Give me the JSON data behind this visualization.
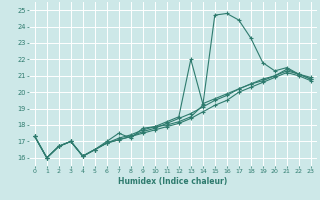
{
  "xlabel": "Humidex (Indice chaleur)",
  "bg_color": "#cde8e8",
  "grid_color": "#ffffff",
  "line_color": "#2e7b6e",
  "xlim": [
    -0.5,
    23.5
  ],
  "ylim": [
    15.5,
    25.5
  ],
  "xticks": [
    0,
    1,
    2,
    3,
    4,
    5,
    6,
    7,
    8,
    9,
    10,
    11,
    12,
    13,
    14,
    15,
    16,
    17,
    18,
    19,
    20,
    21,
    22,
    23
  ],
  "yticks": [
    16,
    17,
    18,
    19,
    20,
    21,
    22,
    23,
    24,
    25
  ],
  "lines": [
    {
      "x": [
        0,
        1,
        2,
        3,
        4,
        5,
        6,
        7,
        8,
        9,
        10,
        11,
        12,
        13,
        14,
        15,
        16,
        17,
        18,
        19,
        20,
        21,
        22,
        23
      ],
      "y": [
        17.3,
        16.0,
        16.7,
        17.0,
        16.1,
        16.5,
        17.0,
        17.5,
        17.2,
        17.8,
        17.9,
        18.0,
        18.2,
        18.5,
        19.2,
        24.7,
        24.8,
        24.4,
        23.3,
        21.8,
        21.3,
        21.5,
        21.1,
        20.8
      ]
    },
    {
      "x": [
        0,
        1,
        2,
        3,
        4,
        5,
        6,
        7,
        8,
        9,
        10,
        11,
        12,
        13,
        14,
        15,
        16,
        17,
        18,
        19,
        20,
        21,
        22,
        23
      ],
      "y": [
        17.3,
        16.0,
        16.7,
        17.0,
        16.1,
        16.5,
        16.9,
        17.1,
        17.3,
        17.5,
        17.7,
        17.9,
        18.1,
        18.4,
        18.8,
        19.2,
        19.5,
        20.0,
        20.3,
        20.6,
        20.9,
        21.2,
        21.0,
        20.7
      ]
    },
    {
      "x": [
        0,
        1,
        2,
        3,
        4,
        5,
        6,
        7,
        8,
        9,
        10,
        11,
        12,
        13,
        14,
        15,
        16,
        17,
        18,
        19,
        20,
        21,
        22,
        23
      ],
      "y": [
        17.3,
        16.0,
        16.7,
        17.0,
        16.1,
        16.5,
        16.9,
        17.1,
        17.3,
        17.6,
        17.8,
        18.1,
        18.4,
        18.7,
        19.1,
        19.5,
        19.8,
        20.2,
        20.5,
        20.7,
        21.0,
        21.3,
        21.1,
        20.9
      ]
    },
    {
      "x": [
        0,
        1,
        2,
        3,
        4,
        5,
        6,
        7,
        8,
        9,
        10,
        11,
        12,
        13,
        14,
        15,
        16,
        17,
        18,
        19,
        20,
        21,
        22,
        23
      ],
      "y": [
        17.3,
        16.0,
        16.7,
        17.0,
        16.1,
        16.5,
        16.9,
        17.2,
        17.4,
        17.7,
        17.9,
        18.2,
        18.5,
        22.0,
        19.3,
        19.6,
        19.9,
        20.2,
        20.5,
        20.8,
        21.0,
        21.4,
        21.1,
        20.8
      ]
    }
  ]
}
